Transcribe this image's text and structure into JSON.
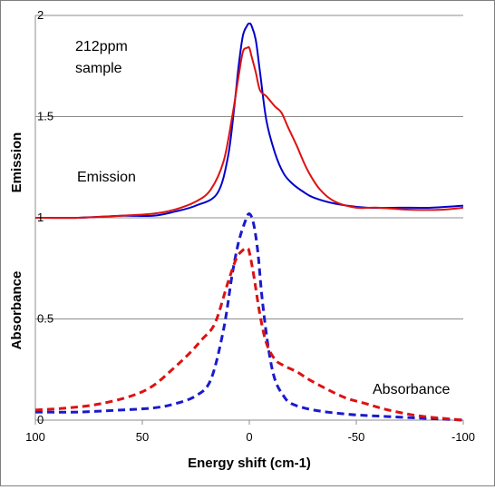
{
  "chart_data": {
    "type": "line",
    "xlabel": "Energy shift (cm-1)",
    "ylabel_top": "Emission",
    "ylabel_bottom": "Absorbance",
    "xlim": [
      100,
      -100
    ],
    "x_ticks": [
      "100",
      "50",
      "0",
      "-50",
      "-100"
    ],
    "y_ticks": [
      {
        "value": 2,
        "label": "2"
      },
      {
        "value": 1.5,
        "label": "1.5"
      },
      {
        "value": 1,
        "label": "1"
      },
      {
        "value": 0.5,
        "label": "0.5"
      },
      {
        "value": 0,
        "label": "0"
      }
    ],
    "ylim": [
      0,
      2
    ],
    "gridlines": [
      2,
      1.5,
      1,
      0.5
    ],
    "annotations": {
      "sample_line1": "212ppm",
      "sample_line2": "sample",
      "emission": "Emission",
      "absorbance": "Absorbance"
    },
    "series": [
      {
        "group": "emission",
        "color": "#0000cc",
        "dash": "solid",
        "x": [
          100,
          80,
          60,
          45,
          35,
          25,
          15,
          10,
          7,
          5,
          3,
          1,
          0,
          -1,
          -3,
          -5,
          -8,
          -12,
          -16,
          -20,
          -25,
          -30,
          -40,
          -55,
          -70,
          -85,
          -100
        ],
        "y": [
          1.0,
          1.0,
          1.01,
          1.01,
          1.03,
          1.06,
          1.12,
          1.3,
          1.55,
          1.75,
          1.9,
          1.95,
          1.96,
          1.95,
          1.88,
          1.72,
          1.48,
          1.32,
          1.22,
          1.17,
          1.13,
          1.1,
          1.07,
          1.05,
          1.05,
          1.05,
          1.06
        ]
      },
      {
        "group": "emission",
        "color": "#dd1111",
        "dash": "solid",
        "x": [
          100,
          80,
          60,
          45,
          35,
          25,
          18,
          12,
          8,
          5,
          3,
          1,
          0,
          -1,
          -3,
          -5,
          -8,
          -12,
          -15,
          -18,
          -22,
          -27,
          -33,
          -40,
          -50,
          -60,
          -75,
          -90,
          -100
        ],
        "y": [
          1.0,
          1.0,
          1.01,
          1.02,
          1.04,
          1.08,
          1.14,
          1.28,
          1.5,
          1.7,
          1.82,
          1.84,
          1.84,
          1.8,
          1.72,
          1.63,
          1.6,
          1.55,
          1.52,
          1.45,
          1.36,
          1.24,
          1.14,
          1.08,
          1.05,
          1.05,
          1.04,
          1.04,
          1.05
        ]
      },
      {
        "group": "absorbance",
        "color": "#1a1acc",
        "dash": "dashed",
        "x": [
          100,
          80,
          60,
          45,
          35,
          25,
          18,
          12,
          8,
          5,
          2,
          0,
          -2,
          -4,
          -6,
          -9,
          -12,
          -16,
          -20,
          -30,
          -45,
          -60,
          -80,
          -100
        ],
        "y": [
          0.04,
          0.04,
          0.05,
          0.06,
          0.08,
          0.12,
          0.2,
          0.45,
          0.72,
          0.88,
          0.98,
          1.02,
          0.97,
          0.83,
          0.6,
          0.35,
          0.2,
          0.12,
          0.08,
          0.05,
          0.03,
          0.02,
          0.01,
          0.0
        ]
      },
      {
        "group": "absorbance",
        "color": "#dd1111",
        "dash": "dashed",
        "x": [
          100,
          85,
          70,
          55,
          45,
          35,
          28,
          22,
          16,
          10,
          6,
          3,
          1,
          0,
          -2,
          -5,
          -8,
          -12,
          -16,
          -22,
          -28,
          -35,
          -45,
          -55,
          -65,
          -80,
          -100
        ],
        "y": [
          0.05,
          0.06,
          0.08,
          0.12,
          0.17,
          0.26,
          0.33,
          0.4,
          0.48,
          0.68,
          0.8,
          0.84,
          0.85,
          0.83,
          0.72,
          0.52,
          0.38,
          0.3,
          0.27,
          0.24,
          0.2,
          0.16,
          0.11,
          0.08,
          0.05,
          0.02,
          0.0
        ]
      }
    ]
  }
}
